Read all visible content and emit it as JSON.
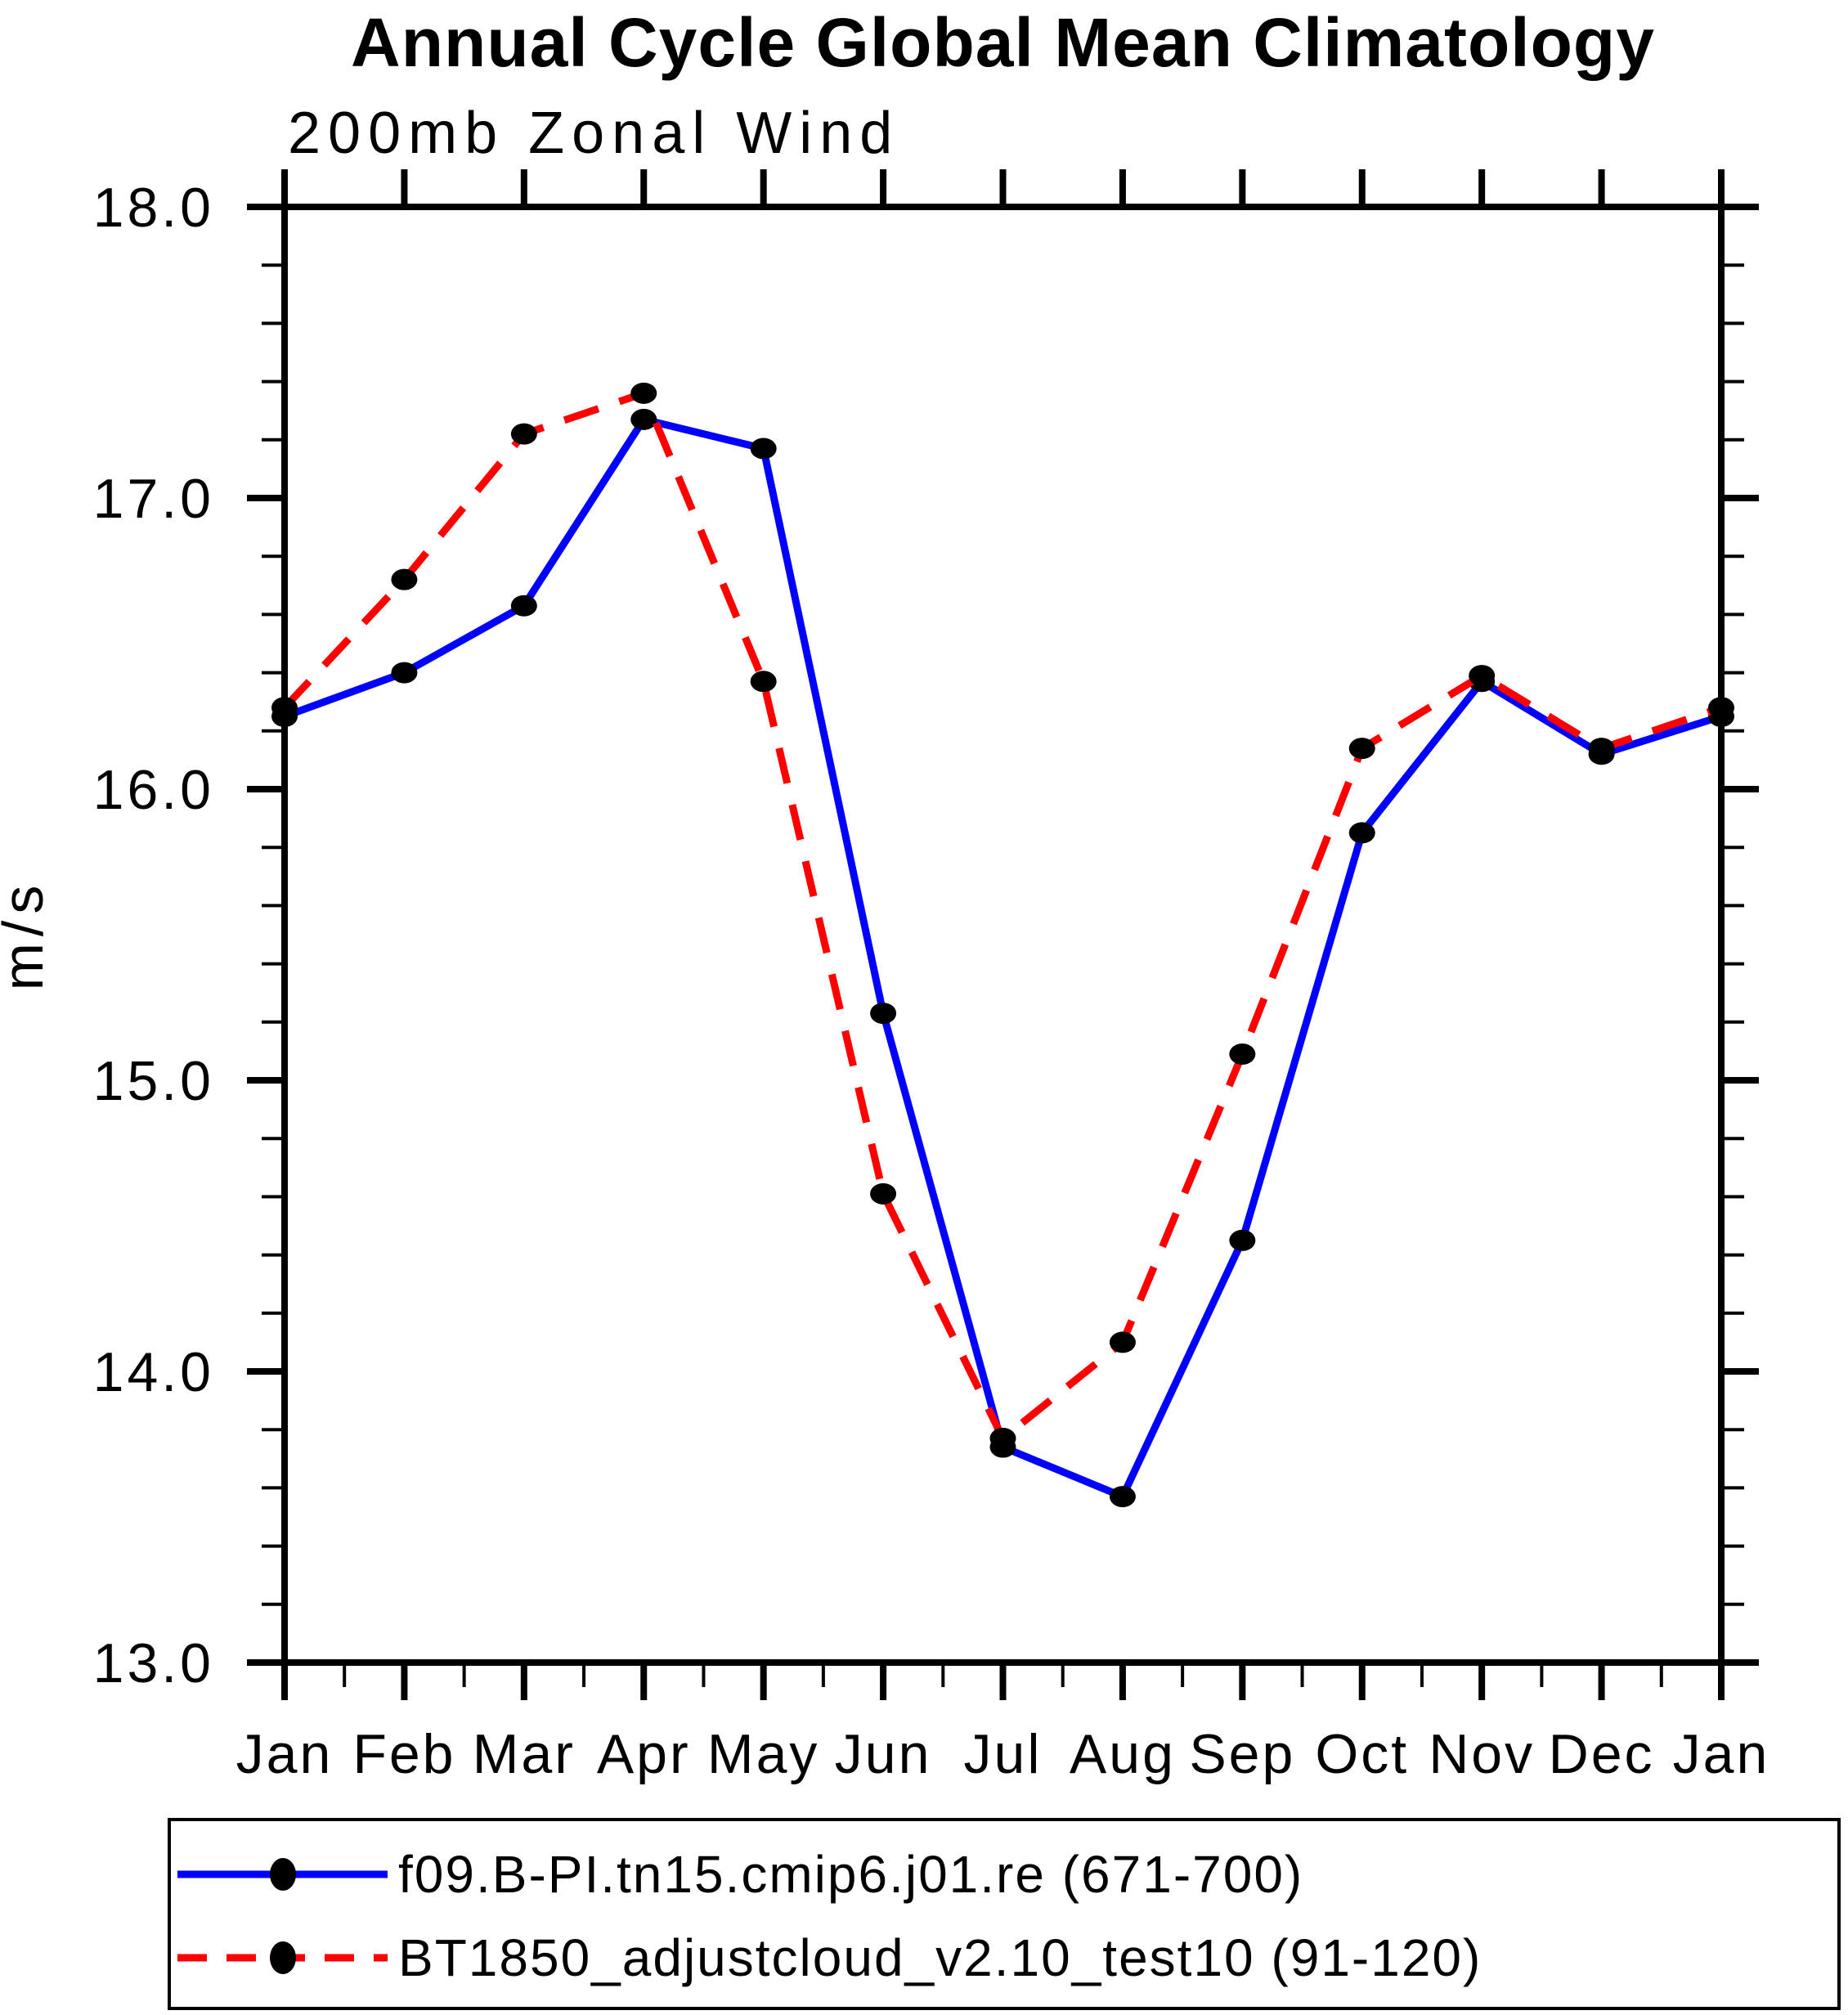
{
  "chart_data": {
    "type": "line",
    "title": "Annual Cycle Global Mean Climatology",
    "subtitle": "200mb Zonal Wind",
    "ylabel": "m/s",
    "ylim": [
      13.0,
      18.0
    ],
    "ytick_step": 1.0,
    "yminor_step": 0.2,
    "ytick_labels": [
      "18.0",
      "17.0",
      "16.0",
      "15.0",
      "14.0",
      "13.0"
    ],
    "categories": [
      "Jan",
      "Feb",
      "Mar",
      "Apr",
      "May",
      "Jun",
      "Jul",
      "Aug",
      "Sep",
      "Oct",
      "Nov",
      "Dec",
      "Jan"
    ],
    "grid": false,
    "legend_position": "bottom",
    "marker": {
      "shape": "filled-circle",
      "color": "#000000"
    },
    "series": [
      {
        "name": "f09.B-PI.tn15.cmip6.j01.re (671-700)",
        "color": "#0000ff",
        "line_style": "solid",
        "values": [
          16.25,
          16.4,
          16.63,
          17.27,
          17.17,
          15.23,
          13.74,
          13.57,
          14.45,
          15.85,
          16.37,
          16.12,
          16.25
        ]
      },
      {
        "name": "BT1850_adjustcloud_v2.10_test10 (91-120)",
        "color": "#ff0000",
        "line_style": "dashed",
        "values": [
          16.28,
          16.72,
          17.22,
          17.36,
          16.37,
          14.61,
          13.77,
          14.1,
          15.09,
          16.14,
          16.39,
          16.14,
          16.28
        ]
      }
    ]
  }
}
